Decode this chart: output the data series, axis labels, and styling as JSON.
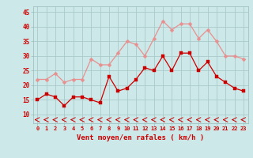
{
  "x": [
    0,
    1,
    2,
    3,
    4,
    5,
    6,
    7,
    8,
    9,
    10,
    11,
    12,
    13,
    14,
    15,
    16,
    17,
    18,
    19,
    20,
    21,
    22,
    23
  ],
  "wind_avg": [
    15,
    17,
    16,
    13,
    16,
    16,
    15,
    14,
    23,
    18,
    19,
    22,
    26,
    25,
    30,
    25,
    31,
    31,
    25,
    28,
    23,
    21,
    19,
    18
  ],
  "wind_gust": [
    22,
    22,
    24,
    21,
    22,
    22,
    29,
    27,
    27,
    31,
    35,
    34,
    30,
    36,
    42,
    39,
    41,
    41,
    36,
    39,
    35,
    30,
    30,
    29
  ],
  "x_ticks": [
    0,
    1,
    2,
    3,
    4,
    5,
    6,
    7,
    8,
    9,
    10,
    11,
    12,
    13,
    14,
    15,
    16,
    17,
    18,
    19,
    20,
    21,
    22,
    23
  ],
  "y_ticks": [
    10,
    15,
    20,
    25,
    30,
    35,
    40,
    45
  ],
  "ylim": [
    7,
    47
  ],
  "xlim": [
    -0.5,
    23.5
  ],
  "xlabel": "Vent moyen/en rafales ( km/h )",
  "bg_color": "#cce8e8",
  "grid_color": "#aacaca",
  "line_avg_color": "#cc0000",
  "line_gust_color": "#e89090",
  "xlabel_color": "#cc0000",
  "tick_color": "#cc0000",
  "bottom_marker_color": "#cc0000",
  "figwidth": 3.2,
  "figheight": 2.0,
  "dpi": 100
}
